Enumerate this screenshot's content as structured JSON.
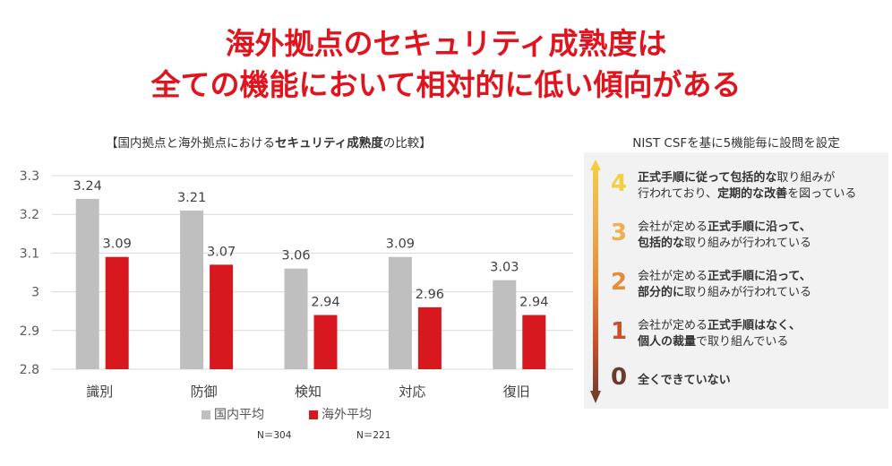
{
  "title": {
    "line1": "海外拠点のセキュリティ成熟度は",
    "line2": "全ての機能において相対的に低い傾向がある"
  },
  "chart_caption": {
    "open": "【",
    "part1": "国内拠点と海外拠点における",
    "bold": "セキュリティ成熟度",
    "part2": "の比較",
    "close": "】"
  },
  "chart_data": {
    "type": "bar",
    "categories": [
      "識別",
      "防御",
      "検知",
      "対応",
      "復旧"
    ],
    "series": [
      {
        "name": "国内平均",
        "values": [
          3.24,
          3.21,
          3.06,
          3.09,
          3.03
        ],
        "value_labels": [
          "3.24",
          "3.21",
          "3.06",
          "3.09",
          "3.03"
        ],
        "color": "#bfbfbf",
        "n": "N＝304"
      },
      {
        "name": "海外平均",
        "values": [
          3.09,
          3.07,
          2.94,
          2.96,
          2.94
        ],
        "value_labels": [
          "3.09",
          "3.07",
          "2.94",
          "2.96",
          "2.94"
        ],
        "color": "#d7191f",
        "n": "N＝221"
      }
    ],
    "ylim": [
      2.8,
      3.3
    ],
    "yticks": [
      2.8,
      2.9,
      3.0,
      3.1,
      3.2,
      3.3
    ],
    "ytick_labels": [
      "2.8",
      "2.9",
      "3",
      "3.1",
      "3.2",
      "3.3"
    ],
    "grid": true,
    "legend": "bottom"
  },
  "right_caption": "NIST CSFを基に5機能毎に設問を設定",
  "levels": [
    {
      "num": "4",
      "color": "#f4d03f",
      "lines": [
        [
          {
            "t": "正式手順に従って包括的な",
            "b": true
          },
          {
            "t": "取り組みが",
            "b": false
          }
        ],
        [
          {
            "t": "行われており、",
            "b": false
          },
          {
            "t": "定期的な改善",
            "b": true
          },
          {
            "t": "を図っている",
            "b": false
          }
        ]
      ]
    },
    {
      "num": "3",
      "color": "#efae52",
      "lines": [
        [
          {
            "t": "会社が定める",
            "b": false
          },
          {
            "t": "正式手順に沿って、",
            "b": true
          }
        ],
        [
          {
            "t": "包括的な",
            "b": true
          },
          {
            "t": "取り組みが行われている",
            "b": false
          }
        ]
      ]
    },
    {
      "num": "2",
      "color": "#e58b3a",
      "lines": [
        [
          {
            "t": "会社が定める",
            "b": false
          },
          {
            "t": "正式手順に沿って、",
            "b": true
          }
        ],
        [
          {
            "t": "部分的に",
            "b": true
          },
          {
            "t": "取り組みが行われている",
            "b": false
          }
        ]
      ]
    },
    {
      "num": "1",
      "color": "#c9512a",
      "lines": [
        [
          {
            "t": "会社が定める",
            "b": false
          },
          {
            "t": "正式手順はなく、",
            "b": true
          }
        ],
        [
          {
            "t": "個人の裁量",
            "b": true
          },
          {
            "t": "で取り組んでいる",
            "b": false
          }
        ]
      ]
    },
    {
      "num": "0",
      "color": "#6b3a2a",
      "lines": [
        [
          {
            "t": "全くできていない",
            "b": true
          }
        ]
      ]
    }
  ]
}
